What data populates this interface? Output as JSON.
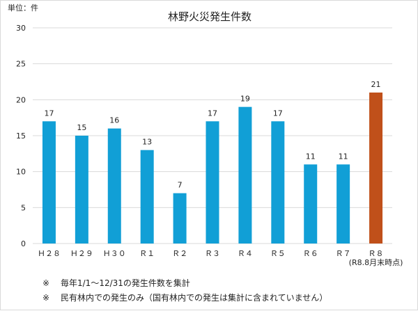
{
  "chart_data": {
    "type": "bar",
    "title": "林野火災発生件数",
    "unit_label": "単位：件",
    "categories": [
      "Ｈ２８",
      "Ｈ２９",
      "Ｈ３０",
      "Ｒ１",
      "Ｒ２",
      "Ｒ３",
      "Ｒ４",
      "Ｒ５",
      "Ｒ６",
      "Ｒ７",
      "Ｒ８"
    ],
    "category_sublabels": [
      "",
      "",
      "",
      "",
      "",
      "",
      "",
      "",
      "",
      "",
      "(R8.8月末時点)"
    ],
    "values": [
      17,
      15,
      16,
      13,
      7,
      17,
      19,
      17,
      11,
      11,
      21
    ],
    "value_labels": [
      "17",
      "15",
      "16",
      "13",
      "7",
      "17",
      "19",
      "17",
      "11",
      "11",
      "21"
    ],
    "ylim": [
      0,
      30
    ],
    "yticks": [
      "0",
      "5",
      "10",
      "15",
      "20",
      "25",
      "30"
    ],
    "colors": {
      "default": "#119fd6",
      "highlight": "#c0501a",
      "grid": "#d9d9d9"
    },
    "highlight_index": 10,
    "grid": true,
    "legend": "none"
  },
  "notes": [
    {
      "mark": "※",
      "text": "毎年1/1～12/31の発生件数を集計"
    },
    {
      "mark": "※",
      "text": "民有林内での発生のみ（国有林内での発生は集計に含まれていません）"
    }
  ]
}
